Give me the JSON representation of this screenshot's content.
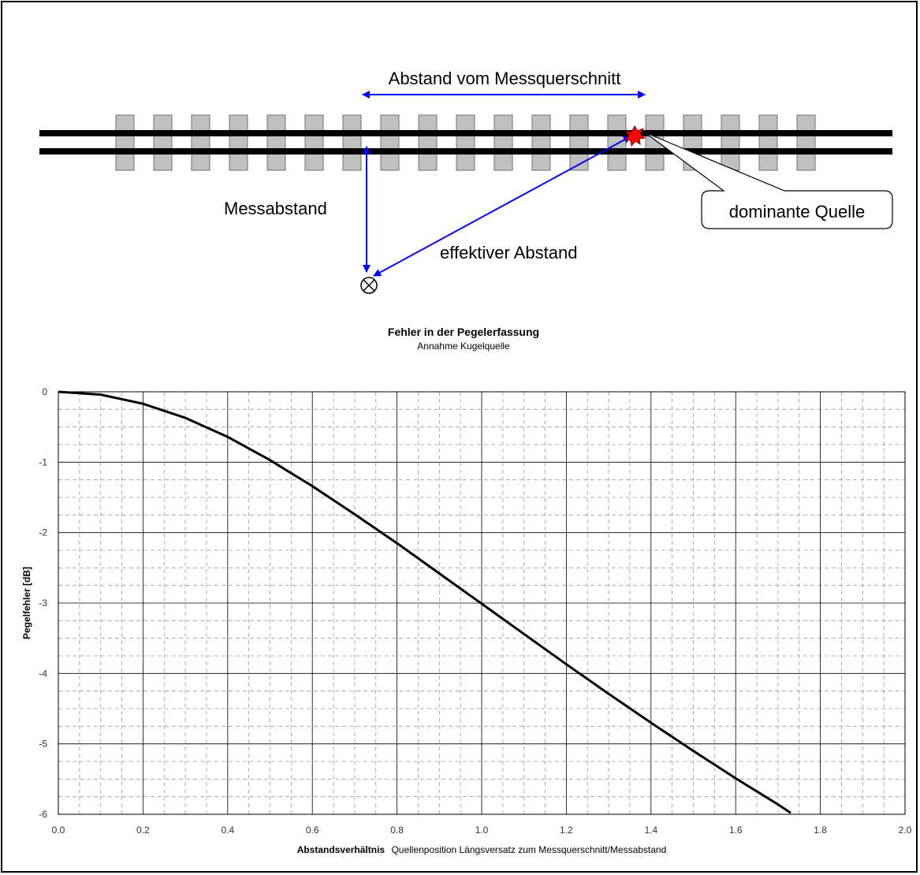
{
  "diagram": {
    "label_top": "Abstand vom Messquerschnitt",
    "label_left": "Messabstand",
    "label_diag": "effektiver Abstand",
    "callout": "dominante Quelle",
    "colors": {
      "arrow": "#0000ff",
      "sleeper": "#c0c0c0",
      "source": "#ff0000"
    }
  },
  "chart_data": {
    "type": "line",
    "title": "Fehler in der Pegelerfassung",
    "subtitle": "Annahme Kugelquelle",
    "xlabel_bold": "Abstandsverhältnis",
    "xlabel_rest": "Quellenposition Längsversatz zum Messquerschnitt/Messabstand",
    "ylabel": "Pegelfehler [dB]",
    "xlim": [
      0,
      2
    ],
    "ylim": [
      -6,
      0
    ],
    "x_ticks": [
      "0.0",
      "0.2",
      "0.4",
      "0.6",
      "0.8",
      "1.0",
      "1.2",
      "1.4",
      "1.6",
      "1.8",
      "2.0"
    ],
    "y_ticks": [
      "0",
      "-1",
      "-2",
      "-3",
      "-4",
      "-5",
      "-6"
    ],
    "grid": "major solid, minor dashed",
    "series": [
      {
        "x": [
          0,
          0.1,
          0.2,
          0.3,
          0.4,
          0.5,
          0.6,
          0.7,
          0.8,
          0.9,
          1.0,
          1.1,
          1.2,
          1.3,
          1.4,
          1.5,
          1.6,
          1.7,
          1.73
        ],
        "y": [
          0,
          -0.04,
          -0.17,
          -0.37,
          -0.64,
          -0.97,
          -1.34,
          -1.74,
          -2.15,
          -2.58,
          -3.01,
          -3.44,
          -3.87,
          -4.29,
          -4.7,
          -5.1,
          -5.49,
          -5.86,
          -5.98
        ],
        "color": "#000000"
      }
    ]
  }
}
